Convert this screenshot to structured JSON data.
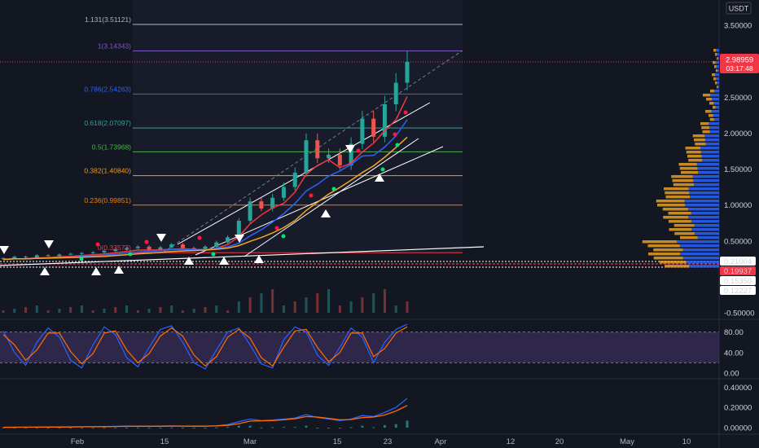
{
  "header": {
    "currency": "USDT"
  },
  "price_tag": {
    "price": "2.98959",
    "countdown": "03:17:48",
    "color": "#f23645"
  },
  "level_labels": [
    {
      "text": "0.21004",
      "bg": "#ffffff",
      "fg": "#131722"
    },
    {
      "text": "0.19937",
      "bg": "#f23645",
      "fg": "#ffffff"
    },
    {
      "text": "0.15350",
      "bg": "#ffffff",
      "fg": "#131722"
    },
    {
      "text": "0.12227",
      "bg": "#ffffff",
      "fg": "#131722"
    }
  ],
  "fib_levels": [
    {
      "label": "1.131(3.51121)",
      "value": 3.51121,
      "color": "#b2b5be"
    },
    {
      "label": "1(3.14343)",
      "value": 3.14343,
      "color": "#7e57c2"
    },
    {
      "label": "0.786(2.54263)",
      "value": 2.54263,
      "color": "#2962ff"
    },
    {
      "label": "0.618(2.07097)",
      "value": 2.07097,
      "color": "#26a69a"
    },
    {
      "label": "0.5(1.73968)",
      "value": 1.73968,
      "color": "#4caf50"
    },
    {
      "label": "0.382(1.40840)",
      "value": 1.4084,
      "color": "#ff9800"
    },
    {
      "label": "0.236(0.99851)",
      "value": 0.99851,
      "color": "#f57c00"
    },
    {
      "label": "0(0.33573)",
      "value": 0.33573,
      "color": "#f23645"
    }
  ],
  "chart_data": [
    {
      "type": "line",
      "pane": "price",
      "quote": "USDT",
      "y_ticks": [
        "3.50000",
        "3.00000",
        "2.50000",
        "2.00000",
        "1.50000",
        "1.00000",
        "0.50000",
        "-0.50000"
      ],
      "ylim": [
        -0.5,
        3.6
      ],
      "x_ticks": [
        "Feb",
        "15",
        "Mar",
        "15",
        "23",
        "Apr",
        "12",
        "20",
        "May",
        "10"
      ],
      "x": [
        0,
        4,
        8,
        12,
        16,
        20,
        24,
        28,
        32,
        36,
        40,
        44,
        48,
        52,
        56,
        60,
        64,
        68,
        72,
        76,
        80,
        84,
        88,
        92,
        96,
        100,
        104,
        108,
        112,
        116,
        120,
        124,
        128,
        132,
        136,
        140,
        144
      ],
      "close": [
        0.26,
        0.28,
        0.27,
        0.3,
        0.29,
        0.31,
        0.32,
        0.33,
        0.34,
        0.36,
        0.38,
        0.4,
        0.42,
        0.38,
        0.41,
        0.45,
        0.4,
        0.39,
        0.42,
        0.48,
        0.55,
        0.78,
        1.05,
        0.95,
        1.1,
        1.25,
        1.45,
        1.9,
        1.65,
        1.7,
        1.55,
        1.85,
        2.2,
        1.95,
        2.4,
        2.7,
        2.99
      ],
      "last_price": 2.98959
    },
    {
      "type": "line",
      "pane": "stochastic",
      "y_ticks": [
        "80.00",
        "40.00",
        "0.00"
      ],
      "ylim": [
        0,
        100
      ],
      "band": [
        20,
        80
      ],
      "series": [
        {
          "color": "#2962ff",
          "values": [
            82,
            40,
            15,
            60,
            88,
            70,
            25,
            10,
            55,
            90,
            75,
            30,
            12,
            50,
            85,
            92,
            60,
            20,
            8,
            45,
            80,
            88,
            55,
            18,
            10,
            65,
            90,
            80,
            35,
            15,
            50,
            88,
            70,
            20,
            60,
            85,
            95
          ]
        },
        {
          "color": "#ff6d00",
          "values": [
            75,
            55,
            25,
            45,
            78,
            78,
            42,
            18,
            38,
            78,
            82,
            45,
            20,
            38,
            72,
            88,
            72,
            35,
            14,
            32,
            70,
            85,
            68,
            30,
            14,
            50,
            82,
            85,
            50,
            22,
            40,
            78,
            78,
            32,
            48,
            78,
            90
          ]
        }
      ]
    },
    {
      "type": "line",
      "pane": "macd",
      "y_ticks": [
        "0.40000",
        "0.20000",
        "0.00000"
      ],
      "ylim": [
        -0.04,
        0.46
      ],
      "series": [
        {
          "color": "#2962ff",
          "values": [
            0.004,
            0.004,
            0.005,
            0.006,
            0.006,
            0.007,
            0.008,
            0.009,
            0.01,
            0.012,
            0.013,
            0.015,
            0.016,
            0.014,
            0.015,
            0.018,
            0.016,
            0.014,
            0.015,
            0.02,
            0.03,
            0.06,
            0.085,
            0.07,
            0.075,
            0.085,
            0.095,
            0.13,
            0.1,
            0.085,
            0.07,
            0.085,
            0.12,
            0.11,
            0.15,
            0.2,
            0.29
          ]
        },
        {
          "color": "#ff6d00",
          "values": [
            0.003,
            0.004,
            0.004,
            0.005,
            0.006,
            0.006,
            0.007,
            0.008,
            0.009,
            0.01,
            0.012,
            0.013,
            0.014,
            0.014,
            0.014,
            0.016,
            0.016,
            0.015,
            0.015,
            0.017,
            0.023,
            0.04,
            0.065,
            0.068,
            0.07,
            0.078,
            0.088,
            0.11,
            0.105,
            0.092,
            0.078,
            0.08,
            0.1,
            0.105,
            0.125,
            0.165,
            0.22
          ]
        }
      ]
    }
  ]
}
